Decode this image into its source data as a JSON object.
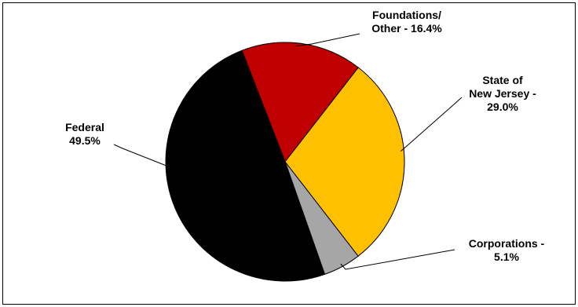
{
  "chart_data": {
    "type": "pie",
    "title": "",
    "start_angle_deg": -21.2,
    "direction": "clockwise",
    "slices": [
      {
        "name": "Foundations/ Other",
        "value": 16.4,
        "label_lines": [
          "Foundations/",
          "Other - 16.4%"
        ],
        "color": "#c00000"
      },
      {
        "name": "State of New Jersey",
        "value": 29.0,
        "label_lines": [
          "State of",
          "New Jersey -",
          "29.0%"
        ],
        "color": "#ffc000"
      },
      {
        "name": "Corporations",
        "value": 5.1,
        "label_lines": [
          "Corporations -",
          "5.1%"
        ],
        "color": "#a6a6a6"
      },
      {
        "name": "Federal",
        "value": 49.5,
        "label_lines": [
          "Federal",
          "49.5%"
        ],
        "color": "#000000"
      }
    ]
  }
}
